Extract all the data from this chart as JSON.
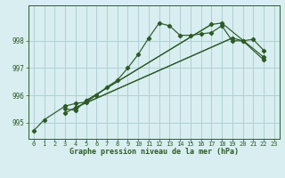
{
  "title": "Graphe pression niveau de la mer (hPa)",
  "bg_color": "#d8eef0",
  "grid_color": "#b0d0d4",
  "line_color": "#2d5a27",
  "xlim": [
    -0.5,
    23.5
  ],
  "ylim": [
    994.4,
    999.3
  ],
  "yticks": [
    995,
    996,
    997,
    998
  ],
  "xticks": [
    0,
    1,
    2,
    3,
    4,
    5,
    6,
    7,
    8,
    9,
    10,
    11,
    12,
    13,
    14,
    15,
    16,
    17,
    18,
    19,
    20,
    21,
    22,
    23
  ],
  "series1_x": [
    0,
    1,
    3,
    4,
    5,
    6,
    7,
    8,
    9,
    10,
    11,
    12,
    13,
    14,
    15,
    16,
    17,
    18,
    19,
    20,
    21,
    22
  ],
  "series1_y": [
    994.7,
    995.1,
    995.6,
    995.7,
    995.75,
    996.0,
    996.3,
    996.55,
    997.0,
    997.5,
    998.1,
    998.65,
    998.55,
    998.2,
    998.2,
    998.25,
    998.3,
    998.55,
    998.0,
    998.0,
    998.05,
    997.65
  ],
  "series2_x": [
    3,
    4,
    5,
    17,
    18,
    22
  ],
  "series2_y": [
    995.5,
    995.45,
    995.8,
    998.6,
    998.65,
    997.4
  ],
  "series2_connect": [
    [
      3,
      4,
      5
    ],
    [
      5,
      17,
      18,
      22
    ]
  ],
  "series3_x": [
    3,
    4,
    19,
    20,
    22
  ],
  "series3_y": [
    995.35,
    995.55,
    998.1,
    998.0,
    997.3
  ],
  "series3_connect": [
    [
      3,
      4
    ],
    [
      4,
      19,
      20,
      22
    ]
  ],
  "fan_line2": [
    [
      5,
      17
    ],
    [
      995.8,
      998.6
    ]
  ],
  "fan_line3": [
    [
      4,
      19
    ],
    [
      995.55,
      998.1
    ]
  ]
}
